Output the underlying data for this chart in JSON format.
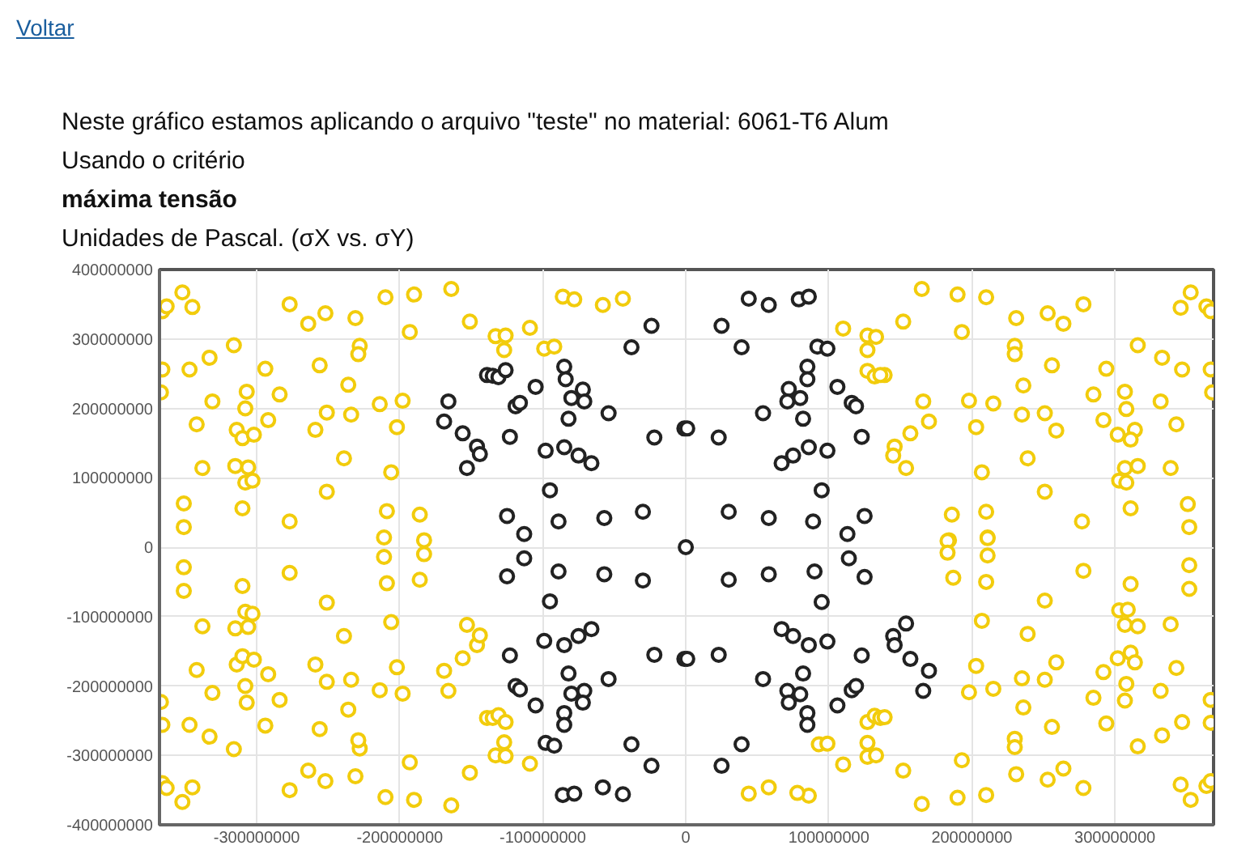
{
  "chart_data": {
    "type": "scatter",
    "title": "Neste gráfico estamos aplicando o arquivo \"teste\" no material: 6061-T6 Alum",
    "subtitle": "Usando o critério",
    "annotations": [
      "Voltar",
      "máxima tensão",
      "Unidades de Pascal. (σX vs. σY)"
    ],
    "xlim": [
      -368000000.0,
      369000000.0
    ],
    "ylim": [
      -400000000.0,
      400000000.0
    ],
    "xticks": [
      -300000000,
      -200000000,
      -100000000,
      0,
      100000000,
      200000000,
      300000000
    ],
    "yticks": [
      -400000000,
      -300000000,
      -200000000,
      -100000000,
      0,
      100000000,
      200000000,
      300000000,
      400000000
    ],
    "grid": true,
    "marker": "circle",
    "series": [
      {
        "color": "#f2cc0c",
        "x": [
          -366000000.0,
          -363000000.0,
          -352000000.0,
          -345000000.0,
          -366000000.0,
          -347000000.0,
          -367000000.0,
          -333000000.0,
          -316000000.0,
          -331000000.0,
          -342000000.0,
          -338000000.0,
          -351000000.0,
          -351000000.0,
          -307000000.0,
          -308000000.0,
          -314000000.0,
          -310000000.0,
          -302000000.0,
          -315000000.0,
          -306000000.0,
          -308000000.0,
          -303000000.0,
          -310000000.0,
          -294000000.0,
          -292000000.0,
          -284000000.0,
          -277000000.0,
          -264000000.0,
          -252000000.0,
          -256000000.0,
          -251000000.0,
          -259000000.0,
          -251000000.0,
          -277000000.0,
          -239000000.0,
          -236000000.0,
          -234000000.0,
          -231000000.0,
          -228000000.0,
          -229000000.0,
          -214000000.0,
          -210000000.0,
          -198000000.0,
          -202000000.0,
          -206000000.0,
          -209000000.0,
          -211000000.0,
          -190000000.0,
          -193000000.0,
          -186000000.0,
          -183000000.0,
          -164000000.0,
          -151000000.0,
          -133000000.0,
          -126000000.0,
          -127000000.0,
          -109000000.0,
          -99000000.0,
          -92000000.0,
          -86000000.0,
          -78000000.0,
          -58000000.0,
          -44000000.0,
          -366000000.0,
          -363000000.0,
          -352000000.0,
          -345000000.0,
          -366000000.0,
          -347000000.0,
          -367000000.0,
          -333000000.0,
          -316000000.0,
          -331000000.0,
          -342000000.0,
          -338000000.0,
          -351000000.0,
          -351000000.0,
          -307000000.0,
          -308000000.0,
          -314000000.0,
          -310000000.0,
          -302000000.0,
          -315000000.0,
          -306000000.0,
          -308000000.0,
          -303000000.0,
          -310000000.0,
          -294000000.0,
          -292000000.0,
          -284000000.0,
          -277000000.0,
          -264000000.0,
          -252000000.0,
          -256000000.0,
          -251000000.0,
          -259000000.0,
          -251000000.0,
          -277000000.0,
          -239000000.0,
          -236000000.0,
          -234000000.0,
          -231000000.0,
          -228000000.0,
          -229000000.0,
          -214000000.0,
          -210000000.0,
          -198000000.0,
          -202000000.0,
          -206000000.0,
          -209000000.0,
          -211000000.0,
          -190000000.0,
          -193000000.0,
          -186000000.0,
          -183000000.0,
          -164000000.0,
          -151000000.0,
          -166000000.0,
          -169000000.0,
          -156000000.0,
          -146000000.0,
          -144000000.0,
          -153000000.0,
          -139000000.0,
          -135000000.0,
          -131000000.0,
          -126000000.0,
          -127000000.0,
          -133000000.0,
          -126000000.0,
          -109000000.0,
          165000000.0,
          190000000.0,
          210000000.0,
          152000000.0,
          193000000.0,
          110000000.0,
          127000000.0,
          133000000.0,
          127000000.0,
          127000000.0,
          132000000.0,
          139000000.0,
          136000000.0,
          166000000.0,
          170000000.0,
          157000000.0,
          146000000.0,
          145000000.0,
          154000000.0,
          186000000.0,
          184000000.0,
          210000000.0,
          211000000.0,
          207000000.0,
          203000000.0,
          198000000.0,
          215000000.0,
          231000000.0,
          230000000.0,
          230000000.0,
          236000000.0,
          235000000.0,
          239000000.0,
          251000000.0,
          251000000.0,
          259000000.0,
          256000000.0,
          253000000.0,
          264000000.0,
          278000000.0,
          277000000.0,
          285000000.0,
          292000000.0,
          294000000.0,
          302000000.0,
          307000000.0,
          308000000.0,
          314000000.0,
          311000000.0,
          316000000.0,
          307000000.0,
          316000000.0,
          303000000.0,
          308000000.0,
          311000000.0,
          332000000.0,
          333000000.0,
          339000000.0,
          343000000.0,
          347000000.0,
          346000000.0,
          353000000.0,
          364000000.0,
          367000000.0,
          367000000.0,
          368000000.0,
          351000000.0,
          352000000.0,
          93000000.0,
          99000000.0,
          110000000.0,
          86000000.0,
          127000000.0,
          132000000.0,
          136000000.0,
          139000000.0,
          127000000.0,
          127000000.0,
          133000000.0,
          152000000.0,
          165000000.0,
          190000000.0,
          210000000.0,
          193000000.0,
          183000000.0,
          183000000.0,
          211000000.0,
          211000000.0,
          187000000.0,
          210000000.0,
          207000000.0,
          203000000.0,
          198000000.0,
          215000000.0,
          239000000.0,
          235000000.0,
          236000000.0,
          251000000.0,
          259000000.0,
          251000000.0,
          278000000.0,
          230000000.0,
          230000000.0,
          256000000.0,
          231000000.0,
          253000000.0,
          264000000.0,
          278000000.0,
          285000000.0,
          292000000.0,
          294000000.0,
          302000000.0,
          311000000.0,
          314000000.0,
          308000000.0,
          307000000.0,
          316000000.0,
          332000000.0,
          333000000.0,
          311000000.0,
          303000000.0,
          309000000.0,
          307000000.0,
          316000000.0,
          339000000.0,
          343000000.0,
          347000000.0,
          352000000.0,
          352000000.0,
          367000000.0,
          367000000.0,
          346000000.0,
          353000000.0,
          364000000.0,
          367000000.0,
          44000000.0,
          58000000.0,
          78000000.0
        ],
        "values": [
          340000000.0,
          347000000.0,
          367000000.0,
          346000000.0,
          256000000.0,
          256000000.0,
          223000000.0,
          273000000.0,
          291000000.0,
          210000000.0,
          177000000.0,
          114000000.0,
          63000000.0,
          29000000.0,
          224000000.0,
          200000000.0,
          169000000.0,
          157000000.0,
          162000000.0,
          117000000.0,
          115000000.0,
          93000000.0,
          96000000.0,
          56000000.0,
          257000000.0,
          183000000.0,
          220000000.0,
          350000000.0,
          322000000.0,
          337000000.0,
          262000000.0,
          194000000.0,
          169000000.0,
          80000000.0,
          37000000.0,
          128000000.0,
          234000000.0,
          191000000.0,
          330000000.0,
          290000000.0,
          278000000.0,
          206000000.0,
          360000000.0,
          211000000.0,
          173000000.0,
          108000000.0,
          52000000.0,
          14000000.0,
          364000000.0,
          310000000.0,
          47000000.0,
          10000000.0,
          372000000.0,
          325000000.0,
          304000000.0,
          305000000.0,
          284000000.0,
          316000000.0,
          286000000.0,
          289000000.0,
          361000000.0,
          357000000.0,
          349000000.0,
          358000000.0,
          -340000000.0,
          -347000000.0,
          -367000000.0,
          -346000000.0,
          -256000000.0,
          -256000000.0,
          -223000000.0,
          -273000000.0,
          -291000000.0,
          -210000000.0,
          -177000000.0,
          -114000000.0,
          -63000000.0,
          -29000000.0,
          -224000000.0,
          -200000000.0,
          -169000000.0,
          -157000000.0,
          -162000000.0,
          -117000000.0,
          -115000000.0,
          -93000000.0,
          -96000000.0,
          -56000000.0,
          -257000000.0,
          -183000000.0,
          -220000000.0,
          -350000000.0,
          -322000000.0,
          -337000000.0,
          -262000000.0,
          -194000000.0,
          -169000000.0,
          -80000000.0,
          -37000000.0,
          -128000000.0,
          -234000000.0,
          -191000000.0,
          -330000000.0,
          -290000000.0,
          -278000000.0,
          -206000000.0,
          -360000000.0,
          -211000000.0,
          -173000000.0,
          -108000000.0,
          -52000000.0,
          -14000000.0,
          -364000000.0,
          -310000000.0,
          -47000000.0,
          -10000000.0,
          -372000000.0,
          -325000000.0,
          -207000000.0,
          -178000000.0,
          -160000000.0,
          -141000000.0,
          -127000000.0,
          -112000000.0,
          -246000000.0,
          -246000000.0,
          -242000000.0,
          -252000000.0,
          -281000000.0,
          -300000000.0,
          -301000000.0,
          -312000000.0,
          372000000.0,
          364000000.0,
          360000000.0,
          325000000.0,
          310000000.0,
          315000000.0,
          305000000.0,
          303000000.0,
          284000000.0,
          254000000.0,
          246000000.0,
          248000000.0,
          248000000.0,
          210000000.0,
          181000000.0,
          164000000.0,
          145000000.0,
          132000000.0,
          114000000.0,
          47000000.0,
          10000000.0,
          51000000.0,
          14000000.0,
          108000000.0,
          173000000.0,
          211000000.0,
          207000000.0,
          330000000.0,
          290000000.0,
          278000000.0,
          233000000.0,
          191000000.0,
          128000000.0,
          80000000.0,
          193000000.0,
          168000000.0,
          262000000.0,
          337000000.0,
          322000000.0,
          350000000.0,
          37000000.0,
          220000000.0,
          183000000.0,
          257000000.0,
          162000000.0,
          224000000.0,
          199000000.0,
          169000000.0,
          155000000.0,
          291000000.0,
          114000000.0,
          117000000.0,
          96000000.0,
          93000000.0,
          56000000.0,
          210000000.0,
          273000000.0,
          114000000.0,
          177000000.0,
          256000000.0,
          345000000.0,
          367000000.0,
          347000000.0,
          340000000.0,
          256000000.0,
          223000000.0,
          62000000.0,
          29000000.0,
          -284000000.0,
          -283000000.0,
          -313000000.0,
          -358000000.0,
          -252000000.0,
          -243000000.0,
          -246000000.0,
          -245000000.0,
          -282000000.0,
          -302000000.0,
          -300000000.0,
          -322000000.0,
          -370000000.0,
          -361000000.0,
          -357000000.0,
          -307000000.0,
          9000000.0,
          -8000000.0,
          13000000.0,
          -12000000.0,
          -44000000.0,
          -50000000.0,
          -106000000.0,
          -171000000.0,
          -209000000.0,
          -204000000.0,
          -125000000.0,
          -189000000.0,
          -231000000.0,
          -191000000.0,
          -166000000.0,
          -77000000.0,
          -34000000.0,
          -276000000.0,
          -288000000.0,
          -259000000.0,
          -327000000.0,
          -335000000.0,
          -319000000.0,
          -347000000.0,
          -217000000.0,
          -180000000.0,
          -254000000.0,
          -160000000.0,
          -152000000.0,
          -166000000.0,
          -197000000.0,
          -221000000.0,
          -287000000.0,
          -207000000.0,
          -271000000.0,
          -53000000.0,
          -91000000.0,
          -90000000.0,
          -112000000.0,
          -114000000.0,
          -111000000.0,
          -174000000.0,
          -252000000.0,
          -26000000.0,
          -60000000.0,
          -220000000.0,
          -253000000.0,
          -342000000.0,
          -364000000.0,
          -344000000.0,
          -337000000.0,
          -355000000.0,
          -346000000.0,
          -354000000.0
        ]
      },
      {
        "color": "#222222",
        "x": [
          -166000000.0,
          -169000000.0,
          -156000000.0,
          -146000000.0,
          -144000000.0,
          -153000000.0,
          -139000000.0,
          -135000000.0,
          -131000000.0,
          -126000000.0,
          -105000000.0,
          -119000000.0,
          -116000000.0,
          -123000000.0,
          -85000000.0,
          -84000000.0,
          -72000000.0,
          -80000000.0,
          -71000000.0,
          -82000000.0,
          -54000000.0,
          -98000000.0,
          -85000000.0,
          -75000000.0,
          -66000000.0,
          -38000000.0,
          -24000000.0,
          -22000000.0,
          -1000000.0,
          1000000.0,
          -95000000.0,
          -125000000.0,
          -113000000.0,
          -89000000.0,
          -57000000.0,
          -30000000.0,
          0,
          25000000.0,
          39000000.0,
          44000000.0,
          58000000.0,
          79000000.0,
          86000000.0,
          23000000.0,
          54000000.0,
          30000000.0,
          58000000.0,
          67000000.0,
          75000000.0,
          86000000.0,
          99000000.0,
          82000000.0,
          72000000.0,
          71000000.0,
          80000000.0,
          85000000.0,
          85000000.0,
          92000000.0,
          99000000.0,
          106000000.0,
          116000000.0,
          119000000.0,
          123000000.0,
          95000000.0,
          89000000.0,
          125000000.0,
          113000000.0,
          -123000000.0,
          -119000000.0,
          -116000000.0,
          -105000000.0,
          -99000000.0,
          -85000000.0,
          -75000000.0,
          -66000000.0,
          -82000000.0,
          -80000000.0,
          -71000000.0,
          -72000000.0,
          -85000000.0,
          -85000000.0,
          -98000000.0,
          -92000000.0,
          -54000000.0,
          -38000000.0,
          -24000000.0,
          -86000000.0,
          -78000000.0,
          -58000000.0,
          -44000000.0,
          -22000000.0,
          -1000000.0,
          1000000.0,
          -125000000.0,
          -113000000.0,
          -95000000.0,
          -89000000.0,
          -57000000.0,
          -30000000.0,
          23000000.0,
          54000000.0,
          25000000.0,
          39000000.0,
          30000000.0,
          58000000.0,
          67000000.0,
          75000000.0,
          114000000.0,
          90000000.0,
          125000000.0,
          95000000.0,
          86000000.0,
          99000000.0,
          82000000.0,
          71000000.0,
          72000000.0,
          80000000.0,
          85000000.0,
          85000000.0,
          106000000.0,
          116000000.0,
          119000000.0,
          123000000.0,
          145000000.0,
          154000000.0,
          146000000.0,
          157000000.0,
          170000000.0,
          166000000.0
        ],
        "values": [
          210000000.0,
          181000000.0,
          164000000.0,
          145000000.0,
          134000000.0,
          114000000.0,
          248000000.0,
          247000000.0,
          245000000.0,
          255000000.0,
          231000000.0,
          203000000.0,
          208000000.0,
          159000000.0,
          260000000.0,
          242000000.0,
          227000000.0,
          215000000.0,
          210000000.0,
          185000000.0,
          193000000.0,
          139000000.0,
          144000000.0,
          132000000.0,
          121000000.0,
          288000000.0,
          319000000.0,
          158000000.0,
          171000000.0,
          171000000.0,
          82000000.0,
          45000000.0,
          19000000.0,
          37000000.0,
          42000000.0,
          51000000.0,
          0,
          319000000.0,
          288000000.0,
          358000000.0,
          349000000.0,
          357000000.0,
          361000000.0,
          158000000.0,
          193000000.0,
          51000000.0,
          42000000.0,
          121000000.0,
          132000000.0,
          144000000.0,
          139000000.0,
          185000000.0,
          228000000.0,
          210000000.0,
          215000000.0,
          260000000.0,
          242000000.0,
          289000000.0,
          286000000.0,
          231000000.0,
          208000000.0,
          203000000.0,
          159000000.0,
          82000000.0,
          37000000.0,
          45000000.0,
          19000000.0,
          -156000000.0,
          -200000000.0,
          -205000000.0,
          -228000000.0,
          -135000000.0,
          -141000000.0,
          -128000000.0,
          -118000000.0,
          -182000000.0,
          -211000000.0,
          -207000000.0,
          -224000000.0,
          -239000000.0,
          -256000000.0,
          -282000000.0,
          -286000000.0,
          -190000000.0,
          -284000000.0,
          -315000000.0,
          -357000000.0,
          -355000000.0,
          -346000000.0,
          -356000000.0,
          -155000000.0,
          -161000000.0,
          -161000000.0,
          -42000000.0,
          -16000000.0,
          -78000000.0,
          -35000000.0,
          -39000000.0,
          -48000000.0,
          -155000000.0,
          -190000000.0,
          -315000000.0,
          -284000000.0,
          -47000000.0,
          -39000000.0,
          -118000000.0,
          -128000000.0,
          -16000000.0,
          -35000000.0,
          -43000000.0,
          -79000000.0,
          -141000000.0,
          -136000000.0,
          -182000000.0,
          -207000000.0,
          -224000000.0,
          -212000000.0,
          -239000000.0,
          -256000000.0,
          -228000000.0,
          -206000000.0,
          -200000000.0,
          -156000000.0,
          -128000000.0,
          -110000000.0,
          -141000000.0,
          -161000000.0,
          -178000000.0,
          -207000000.0
        ]
      }
    ]
  }
}
